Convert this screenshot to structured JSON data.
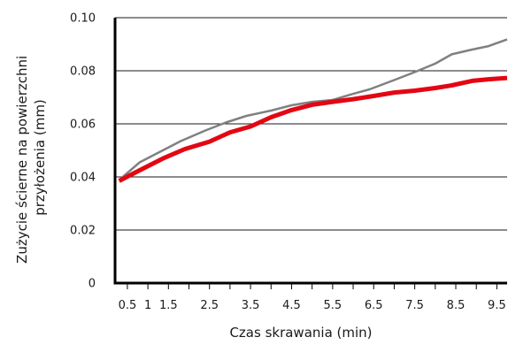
{
  "chart_data": {
    "type": "line",
    "title": "",
    "xlabel": "Czas skrawania (min)",
    "ylabel_lines": [
      "Zużycie ścierne na powierzchni",
      "przyłożenia (mm)"
    ],
    "xlim": [
      0.2,
      9.75
    ],
    "ylim": [
      0,
      0.1
    ],
    "x_tick_values": [
      0.5,
      1.0,
      1.5,
      2.0,
      2.5,
      3.0,
      3.5,
      4.0,
      4.5,
      5.0,
      5.5,
      6.0,
      6.5,
      7.0,
      7.5,
      8.0,
      8.5,
      9.0,
      9.5
    ],
    "x_tick_labels": [
      {
        "x": 0.5,
        "label": "0.5"
      },
      {
        "x": 1.0,
        "label": "1"
      },
      {
        "x": 1.5,
        "label": "1.5"
      },
      {
        "x": 2.5,
        "label": "2.5"
      },
      {
        "x": 3.5,
        "label": "3.5"
      },
      {
        "x": 4.5,
        "label": "4.5"
      },
      {
        "x": 5.5,
        "label": "5.5"
      },
      {
        "x": 6.5,
        "label": "6.5"
      },
      {
        "x": 7.5,
        "label": "7.5"
      },
      {
        "x": 8.5,
        "label": "8.5"
      },
      {
        "x": 9.5,
        "label": "9.5"
      }
    ],
    "y_ticks": [
      {
        "y": 0,
        "label": "0"
      },
      {
        "y": 0.02,
        "label": "0.02"
      },
      {
        "y": 0.04,
        "label": "0.04"
      },
      {
        "y": 0.06,
        "label": "0.06"
      },
      {
        "y": 0.08,
        "label": "0.08"
      },
      {
        "y": 0.1,
        "label": "0.10"
      }
    ],
    "grid": "horizontal",
    "legend": "none",
    "series": [
      {
        "color": "#808080",
        "points": [
          [
            0.35,
            0.0395
          ],
          [
            0.8,
            0.0455
          ],
          [
            1.3,
            0.0495
          ],
          [
            1.8,
            0.0535
          ],
          [
            2.4,
            0.0575
          ],
          [
            2.9,
            0.0605
          ],
          [
            3.4,
            0.063
          ],
          [
            4.0,
            0.065
          ],
          [
            4.5,
            0.067
          ],
          [
            5.0,
            0.0683
          ],
          [
            5.5,
            0.069
          ],
          [
            6.0,
            0.0713
          ],
          [
            6.4,
            0.073
          ],
          [
            7.0,
            0.0765
          ],
          [
            7.5,
            0.0795
          ],
          [
            8.0,
            0.0827
          ],
          [
            8.4,
            0.0862
          ],
          [
            8.9,
            0.088
          ],
          [
            9.3,
            0.0893
          ],
          [
            9.75,
            0.0918
          ]
        ]
      },
      {
        "color": "#e30613",
        "points": [
          [
            0.3,
            0.0385
          ],
          [
            0.8,
            0.0425
          ],
          [
            1.4,
            0.0472
          ],
          [
            1.9,
            0.0505
          ],
          [
            2.5,
            0.0533
          ],
          [
            3.0,
            0.0568
          ],
          [
            3.5,
            0.059
          ],
          [
            4.0,
            0.0625
          ],
          [
            4.5,
            0.0652
          ],
          [
            5.0,
            0.0672
          ],
          [
            5.5,
            0.0683
          ],
          [
            6.0,
            0.0693
          ],
          [
            6.5,
            0.0705
          ],
          [
            7.0,
            0.0718
          ],
          [
            7.5,
            0.0725
          ],
          [
            8.0,
            0.0735
          ],
          [
            8.4,
            0.0745
          ],
          [
            8.9,
            0.0762
          ],
          [
            9.3,
            0.0768
          ],
          [
            9.75,
            0.0773
          ]
        ]
      }
    ]
  }
}
